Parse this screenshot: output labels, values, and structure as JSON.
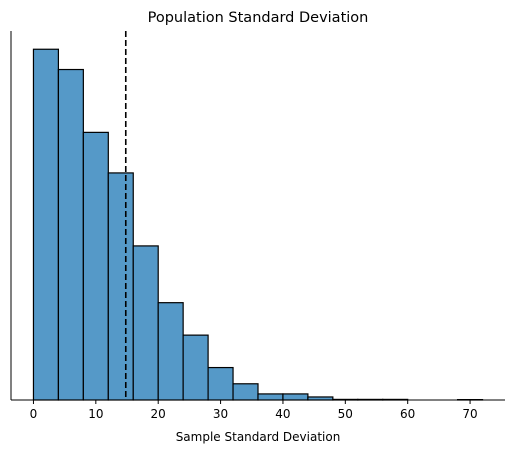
{
  "chart_data": {
    "type": "bar",
    "title": "Population Standard Deviation",
    "xlabel": "Sample Standard Deviation",
    "ylabel": "",
    "bin_width": 4,
    "bins": [
      {
        "start": 0,
        "end": 4,
        "count": 173
      },
      {
        "start": 4,
        "end": 8,
        "count": 163
      },
      {
        "start": 8,
        "end": 12,
        "count": 132
      },
      {
        "start": 12,
        "end": 16,
        "count": 112
      },
      {
        "start": 16,
        "end": 20,
        "count": 76
      },
      {
        "start": 20,
        "end": 24,
        "count": 48
      },
      {
        "start": 24,
        "end": 28,
        "count": 32
      },
      {
        "start": 28,
        "end": 32,
        "count": 16
      },
      {
        "start": 32,
        "end": 36,
        "count": 8
      },
      {
        "start": 36,
        "end": 40,
        "count": 3
      },
      {
        "start": 40,
        "end": 44,
        "count": 3
      },
      {
        "start": 44,
        "end": 48,
        "count": 1.5
      },
      {
        "start": 48,
        "end": 52,
        "count": 0.3
      },
      {
        "start": 52,
        "end": 56,
        "count": 0.3
      },
      {
        "start": 56,
        "end": 60,
        "count": 0.3
      },
      {
        "start": 60,
        "end": 64,
        "count": 0
      },
      {
        "start": 64,
        "end": 68,
        "count": 0
      },
      {
        "start": 68,
        "end": 72,
        "count": 0.2
      }
    ],
    "reference_line": {
      "x": 14.8,
      "style": "dashed",
      "color": "#000000"
    },
    "xlim": [
      -3.6,
      75.6
    ],
    "ylim": [
      0,
      182
    ],
    "x_ticks": [
      0,
      10,
      20,
      30,
      40,
      50,
      60,
      70
    ],
    "y_ticks_visible": false,
    "bar_color": "#5599c8",
    "edge_color": "#000000",
    "grid": false,
    "spines": [
      "left",
      "bottom"
    ]
  }
}
